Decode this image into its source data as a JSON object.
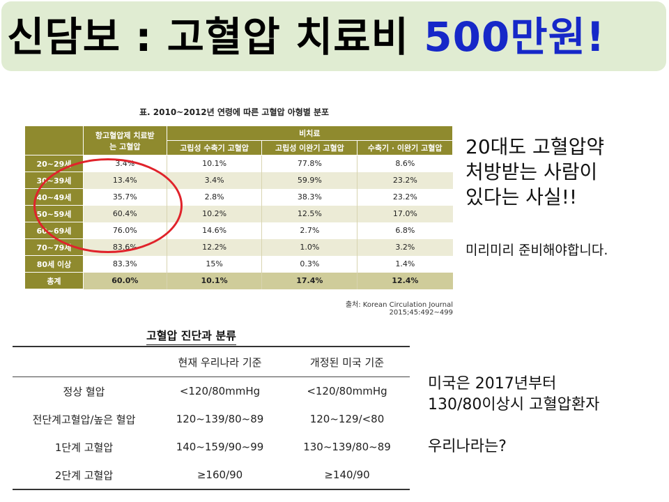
{
  "slide": {
    "title_prefix": "신담보 :  고혈압 치료비 ",
    "title_amount": "500만원!",
    "colors": {
      "banner_bg": "#e0ecd2",
      "accent": "#1628c8",
      "table_header": "#8f8a2e",
      "circle": "#e0232b"
    }
  },
  "table1": {
    "caption": "표. 2010~2012년 연령에 따른 고혈압 아형별 분포",
    "header_treated": "항고혈압제 치료받는 고혈압",
    "header_untreated": "비치료",
    "sub_headers": [
      "고립성 수축기 고혈압",
      "고립성 이완기 고혈압",
      "수축기 · 이완기 고혈압"
    ],
    "rows": [
      {
        "age": "20~29세",
        "treated": "3.4%",
        "isolated_systolic": "10.1%",
        "isolated_diastolic": "77.8%",
        "systolic_diastolic": "8.6%"
      },
      {
        "age": "30~39세",
        "treated": "13.4%",
        "isolated_systolic": "3.4%",
        "isolated_diastolic": "59.9%",
        "systolic_diastolic": "23.2%"
      },
      {
        "age": "40~49세",
        "treated": "35.7%",
        "isolated_systolic": "2.8%",
        "isolated_diastolic": "38.3%",
        "systolic_diastolic": "23.2%"
      },
      {
        "age": "50~59세",
        "treated": "60.4%",
        "isolated_systolic": "10.2%",
        "isolated_diastolic": "12.5%",
        "systolic_diastolic": "17.0%"
      },
      {
        "age": "60~69세",
        "treated": "76.0%",
        "isolated_systolic": "14.6%",
        "isolated_diastolic": "2.7%",
        "systolic_diastolic": "6.8%"
      },
      {
        "age": "70~79세",
        "treated": "83.6%",
        "isolated_systolic": "12.2%",
        "isolated_diastolic": "1.0%",
        "systolic_diastolic": "3.2%"
      },
      {
        "age": "80세 이상",
        "treated": "83.3%",
        "isolated_systolic": "15%",
        "isolated_diastolic": "0.3%",
        "systolic_diastolic": "1.4%"
      }
    ],
    "total": {
      "age": "총계",
      "treated": "60.0%",
      "isolated_systolic": "10.1%",
      "isolated_diastolic": "17.4%",
      "systolic_diastolic": "12.4%"
    },
    "source": "출처: Korean Circulation Journal 2015;45:492~499"
  },
  "notes": {
    "note1_line1": "20대도 고혈압약",
    "note1_line2": "처방받는 사람이",
    "note1_line3": "있다는 사실!!",
    "note2": "미리미리 준비해야합니다.",
    "note3_line1": "미국은 2017년부터",
    "note3_line2": "130/80이상시 고혈압환자",
    "note3_line3": "우리나라는?"
  },
  "table2": {
    "title": "고혈압 진단과 분류",
    "col_korea": "현재 우리나라 기준",
    "col_us": "개정된 미국 기준",
    "rows": [
      {
        "label": "정상 혈압",
        "korea": "<120/80mmHg",
        "us": "<120/80mmHg"
      },
      {
        "label": "전단계고혈압/높은 혈압",
        "korea": "120~139/80~89",
        "us": "120~129/<80"
      },
      {
        "label": "1단계 고혈압",
        "korea": "140~159/90~99",
        "us": "130~139/80~89"
      },
      {
        "label": "2단계 고혈압",
        "korea": "≥160/90",
        "us": "≥140/90"
      }
    ]
  }
}
